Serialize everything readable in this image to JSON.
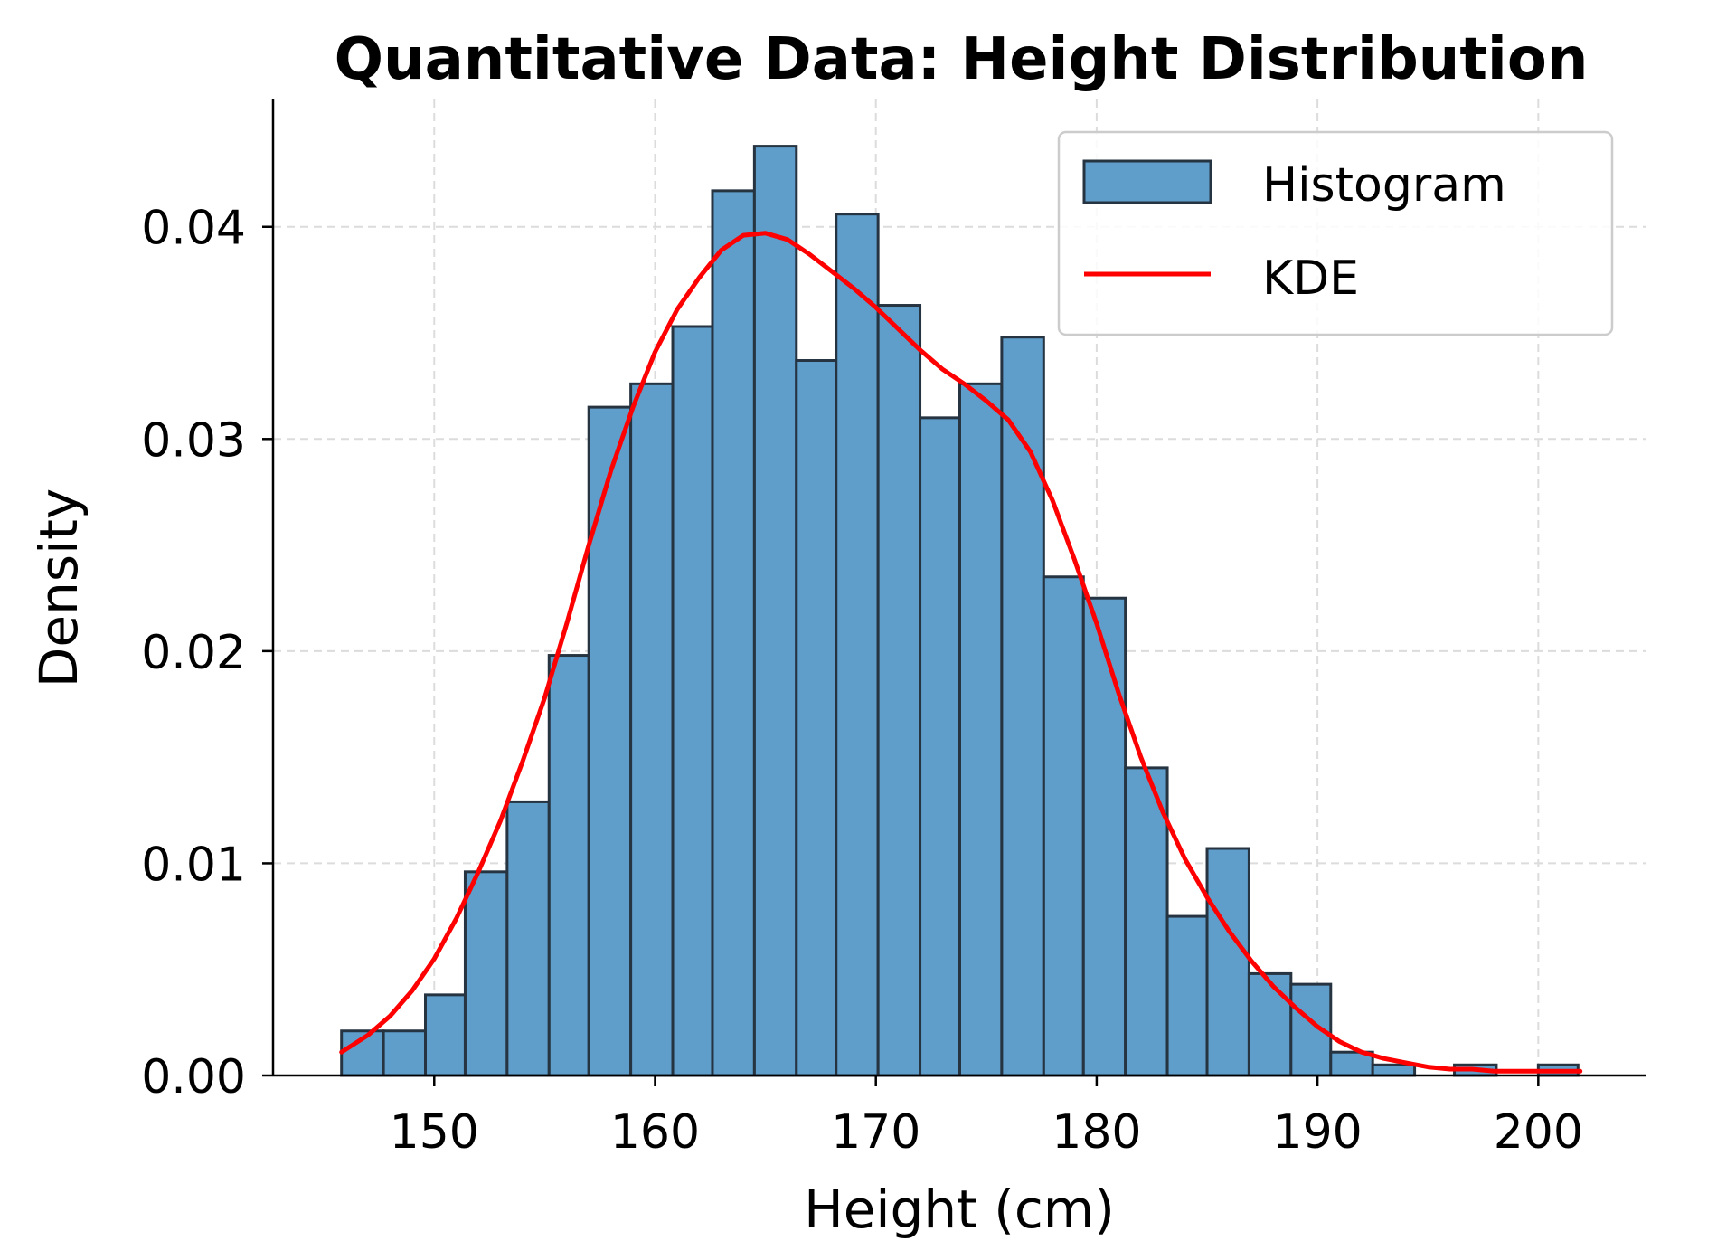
{
  "chart_data": {
    "type": "bar",
    "title": "Quantitative Data: Height Distribution",
    "xlabel": "Height (cm)",
    "ylabel": "Density",
    "xlim": [
      142.7,
      204.9
    ],
    "ylim": [
      0,
      0.046
    ],
    "xticks": [
      150,
      160,
      170,
      180,
      190,
      200
    ],
    "xtick_labels": [
      "150",
      "160",
      "170",
      "180",
      "190",
      "200"
    ],
    "yticks": [
      0,
      0.01,
      0.02,
      0.03,
      0.04
    ],
    "ytick_labels": [
      "0.00",
      "0.01",
      "0.02",
      "0.03",
      "0.04"
    ],
    "grid": true,
    "legend_position": "top-right",
    "colors": {
      "bar_fill": "#5f9ecb",
      "bar_edge": "#263340",
      "kde_line": "#ff0000",
      "grid": "#dcdcdc"
    },
    "series": [
      {
        "name": "Histogram",
        "type": "histogram",
        "bin_edges": [
          145.8,
          147.7,
          149.6,
          151.4,
          153.3,
          155.2,
          157.0,
          158.9,
          160.8,
          162.6,
          164.5,
          166.4,
          168.2,
          170.1,
          172.0,
          173.8,
          175.7,
          177.6,
          179.4,
          181.3,
          183.2,
          185.0,
          186.9,
          188.8,
          190.6,
          192.5,
          194.4,
          196.2,
          198.1,
          200.0,
          201.8
        ],
        "values": [
          0.0021,
          0.0021,
          0.0038,
          0.0096,
          0.0129,
          0.0198,
          0.0315,
          0.0326,
          0.0353,
          0.0417,
          0.0438,
          0.0337,
          0.0406,
          0.0363,
          0.031,
          0.0326,
          0.0348,
          0.0235,
          0.0225,
          0.0145,
          0.0075,
          0.0107,
          0.0048,
          0.0043,
          0.0011,
          0.0005,
          0.0,
          0.0005,
          0.0,
          0.0005
        ]
      },
      {
        "name": "KDE",
        "type": "line",
        "x": [
          145.8,
          147.0,
          148.0,
          149.0,
          150.0,
          151.0,
          152.0,
          153.0,
          154.0,
          155.0,
          156.0,
          157.0,
          158.0,
          159.0,
          160.0,
          161.0,
          162.0,
          163.0,
          164.0,
          165.0,
          166.0,
          167.0,
          168.0,
          169.0,
          170.0,
          171.0,
          172.0,
          173.0,
          174.0,
          175.0,
          176.0,
          177.0,
          178.0,
          179.0,
          180.0,
          181.0,
          182.0,
          183.0,
          184.0,
          185.0,
          186.0,
          187.0,
          188.0,
          189.0,
          190.0,
          191.0,
          192.0,
          193.0,
          194.0,
          195.0,
          196.0,
          197.0,
          198.0,
          199.0,
          200.0,
          201.0,
          201.9
        ],
        "y": [
          0.0011,
          0.0019,
          0.0028,
          0.004,
          0.0055,
          0.0074,
          0.0096,
          0.012,
          0.0148,
          0.0178,
          0.0213,
          0.025,
          0.0285,
          0.0315,
          0.0341,
          0.0361,
          0.0376,
          0.0389,
          0.0396,
          0.0397,
          0.0394,
          0.0387,
          0.0379,
          0.0371,
          0.0362,
          0.0352,
          0.0342,
          0.0333,
          0.0326,
          0.0318,
          0.0309,
          0.0294,
          0.0271,
          0.0243,
          0.0213,
          0.018,
          0.015,
          0.0124,
          0.0102,
          0.0084,
          0.0068,
          0.0054,
          0.0042,
          0.0032,
          0.0023,
          0.0016,
          0.0011,
          0.0008,
          0.0006,
          0.0004,
          0.0003,
          0.0003,
          0.0002,
          0.0002,
          0.0002,
          0.0002,
          0.0002
        ]
      }
    ]
  }
}
